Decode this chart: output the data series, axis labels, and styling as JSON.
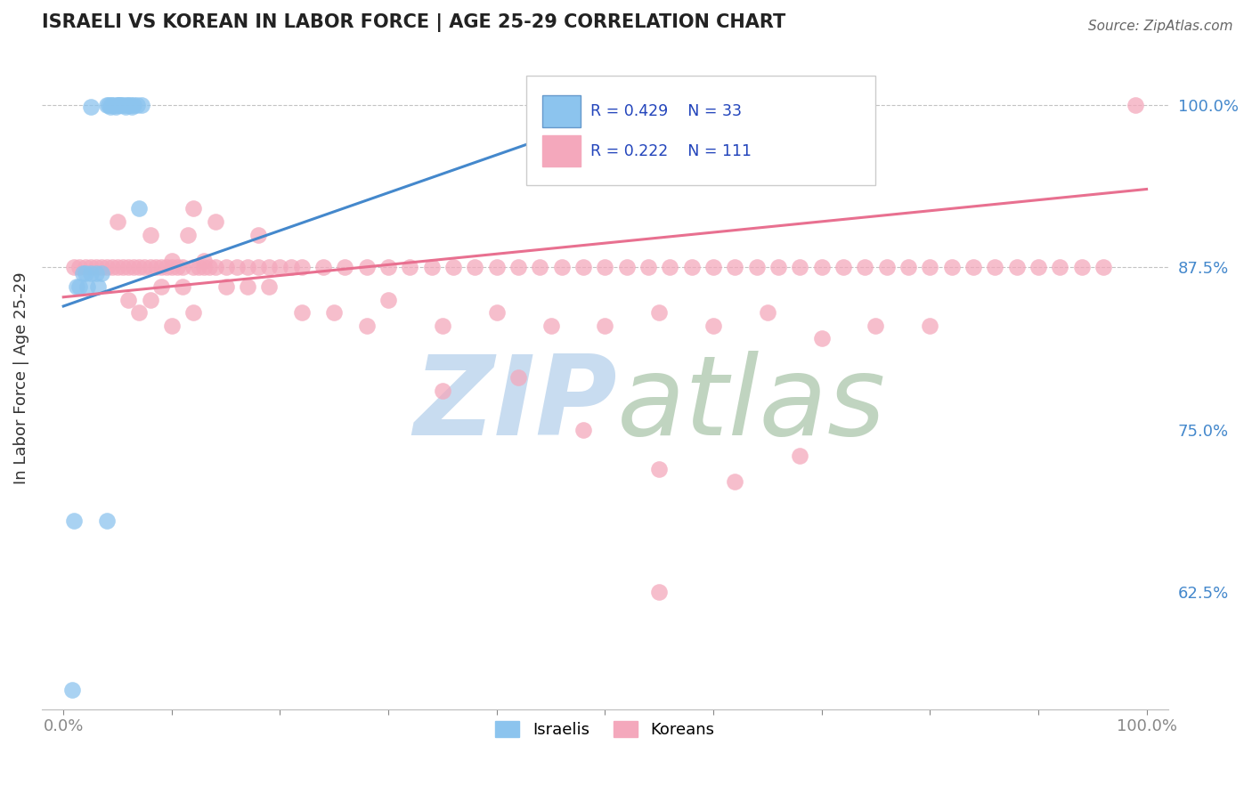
{
  "title": "ISRAELI VS KOREAN IN LABOR FORCE | AGE 25-29 CORRELATION CHART",
  "source": "Source: ZipAtlas.com",
  "ylabel": "In Labor Force | Age 25-29",
  "xlim": [
    -0.02,
    1.02
  ],
  "ylim": [
    0.535,
    1.045
  ],
  "x_ticks": [
    0.0,
    0.1,
    0.2,
    0.3,
    0.4,
    0.5,
    0.6,
    0.7,
    0.8,
    0.9,
    1.0
  ],
  "x_tick_labels": [
    "0.0%",
    "",
    "",
    "",
    "",
    "",
    "",
    "",
    "",
    "",
    "100.0%"
  ],
  "y_tick_right_labels": [
    "62.5%",
    "75.0%",
    "87.5%",
    "100.0%"
  ],
  "y_tick_right_values": [
    0.625,
    0.75,
    0.875,
    1.0
  ],
  "dashed_line_y": [
    0.875,
    1.0
  ],
  "israeli_R": 0.429,
  "israeli_N": 33,
  "korean_R": 0.222,
  "korean_N": 111,
  "israeli_color": "#8CC4EE",
  "korean_color": "#F4A8BC",
  "israeli_line_color": "#4488CC",
  "korean_line_color": "#E87090",
  "legend_text_color": "#2244BB",
  "watermark_zip_color": "#C8DCF0",
  "watermark_atlas_color": "#C0D4C0",
  "background_color": "#FFFFFF",
  "israeli_x": [
    0.025,
    0.04,
    0.042,
    0.043,
    0.044,
    0.046,
    0.048,
    0.05,
    0.05,
    0.052,
    0.053,
    0.055,
    0.057,
    0.058,
    0.06,
    0.062,
    0.063,
    0.065,
    0.068,
    0.07,
    0.072,
    0.008,
    0.01,
    0.012,
    0.015,
    0.018,
    0.02,
    0.022,
    0.025,
    0.03,
    0.032,
    0.035,
    0.04
  ],
  "israeli_y": [
    0.998,
    1.0,
    1.0,
    0.998,
    1.0,
    1.0,
    0.998,
    1.0,
    1.0,
    1.0,
    1.0,
    1.0,
    0.998,
    1.0,
    1.0,
    1.0,
    0.998,
    1.0,
    1.0,
    0.92,
    1.0,
    0.55,
    0.68,
    0.86,
    0.86,
    0.87,
    0.87,
    0.86,
    0.87,
    0.87,
    0.86,
    0.87,
    0.68
  ],
  "korean_x": [
    0.01,
    0.015,
    0.02,
    0.025,
    0.03,
    0.035,
    0.04,
    0.045,
    0.05,
    0.055,
    0.06,
    0.065,
    0.07,
    0.075,
    0.08,
    0.085,
    0.09,
    0.095,
    0.1,
    0.105,
    0.11,
    0.115,
    0.12,
    0.125,
    0.13,
    0.135,
    0.14,
    0.15,
    0.16,
    0.17,
    0.18,
    0.19,
    0.2,
    0.21,
    0.22,
    0.24,
    0.26,
    0.28,
    0.3,
    0.32,
    0.34,
    0.36,
    0.38,
    0.4,
    0.42,
    0.44,
    0.46,
    0.48,
    0.5,
    0.52,
    0.54,
    0.56,
    0.58,
    0.6,
    0.62,
    0.64,
    0.66,
    0.68,
    0.7,
    0.72,
    0.74,
    0.76,
    0.78,
    0.8,
    0.82,
    0.84,
    0.86,
    0.88,
    0.9,
    0.92,
    0.94,
    0.96,
    0.99,
    0.05,
    0.08,
    0.12,
    0.18,
    0.1,
    0.14,
    0.09,
    0.11,
    0.13,
    0.07,
    0.06,
    0.08,
    0.1,
    0.12,
    0.15,
    0.17,
    0.19,
    0.22,
    0.25,
    0.28,
    0.3,
    0.35,
    0.4,
    0.45,
    0.5,
    0.55,
    0.6,
    0.65,
    0.7,
    0.75,
    0.8,
    0.35,
    0.42,
    0.48,
    0.55,
    0.62,
    0.68,
    0.55
  ],
  "korean_y": [
    0.875,
    0.875,
    0.875,
    0.875,
    0.875,
    0.875,
    0.875,
    0.875,
    0.875,
    0.875,
    0.875,
    0.875,
    0.875,
    0.875,
    0.875,
    0.875,
    0.875,
    0.875,
    0.875,
    0.875,
    0.875,
    0.9,
    0.875,
    0.875,
    0.875,
    0.875,
    0.875,
    0.875,
    0.875,
    0.875,
    0.875,
    0.875,
    0.875,
    0.875,
    0.875,
    0.875,
    0.875,
    0.875,
    0.875,
    0.875,
    0.875,
    0.875,
    0.875,
    0.875,
    0.875,
    0.875,
    0.875,
    0.875,
    0.875,
    0.875,
    0.875,
    0.875,
    0.875,
    0.875,
    0.875,
    0.875,
    0.875,
    0.875,
    0.875,
    0.875,
    0.875,
    0.875,
    0.875,
    0.875,
    0.875,
    0.875,
    0.875,
    0.875,
    0.875,
    0.875,
    0.875,
    0.875,
    1.0,
    0.91,
    0.9,
    0.92,
    0.9,
    0.88,
    0.91,
    0.86,
    0.86,
    0.88,
    0.84,
    0.85,
    0.85,
    0.83,
    0.84,
    0.86,
    0.86,
    0.86,
    0.84,
    0.84,
    0.83,
    0.85,
    0.83,
    0.84,
    0.83,
    0.83,
    0.84,
    0.83,
    0.84,
    0.82,
    0.83,
    0.83,
    0.78,
    0.79,
    0.75,
    0.72,
    0.71,
    0.73,
    0.625
  ],
  "israeli_trendline_x": [
    0.0,
    0.55
  ],
  "israeli_trendline_y": [
    0.845,
    1.005
  ],
  "korean_trendline_x": [
    0.0,
    1.0
  ],
  "korean_trendline_y": [
    0.852,
    0.935
  ]
}
